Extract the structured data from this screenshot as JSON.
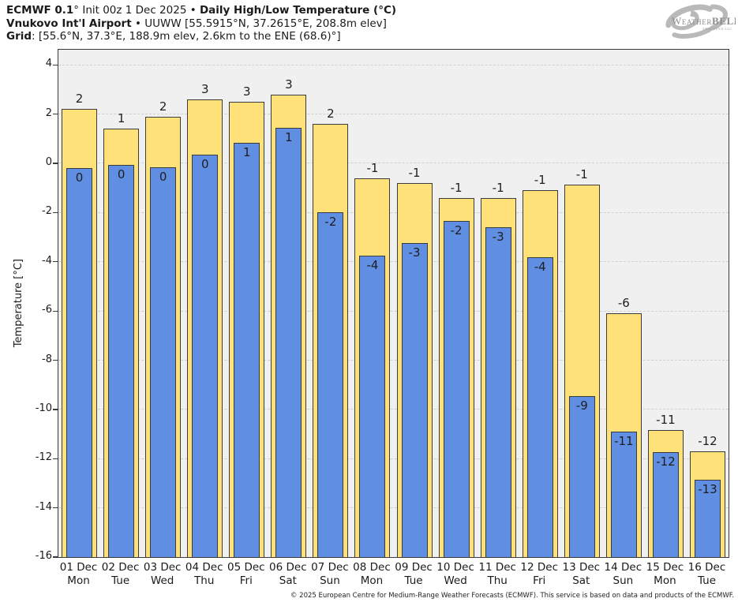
{
  "header": {
    "line1_bold1": "ECMWF 0.1",
    "line1_reg1": "° Init 00z 1 Dec 2025 • ",
    "line1_bold2": "Daily High/Low Temperature (°C)",
    "line2_bold": "Vnukovo Int'l Airport",
    "line2_reg": " • UUWW [55.5915°N, 37.2615°E, 208.8m elev]",
    "line3_bold": "Grid",
    "line3_reg": ": [55.6°N, 37.3°E, 188.9m elev, 2.6km to the ENE (68.6)°]"
  },
  "logo": {
    "brand_w": "W",
    "brand_eather": "EATHER",
    "brand_bell": "BELL",
    "brand_sub": "ANALYTICS LLC"
  },
  "chart_data": {
    "type": "bar",
    "title": "ECMWF 0.1° Init 00z 1 Dec 2025 • Daily High/Low Temperature (°C)",
    "subtitle": "Vnukovo Int'l Airport • UUWW [55.5915°N, 37.2615°E, 208.8m elev]",
    "ylabel": "Temperature [°C]",
    "ylim": [
      -16,
      4.62
    ],
    "yticks": [
      4,
      2,
      0,
      -2,
      -4,
      -6,
      -8,
      -10,
      -12,
      -14,
      -16
    ],
    "grid": "horizontal-dashed",
    "legend_position": "none",
    "categories": [
      {
        "date": "01 Dec",
        "day": "Mon"
      },
      {
        "date": "02 Dec",
        "day": "Tue"
      },
      {
        "date": "03 Dec",
        "day": "Wed"
      },
      {
        "date": "04 Dec",
        "day": "Thu"
      },
      {
        "date": "05 Dec",
        "day": "Fri"
      },
      {
        "date": "06 Dec",
        "day": "Sat"
      },
      {
        "date": "07 Dec",
        "day": "Sun"
      },
      {
        "date": "08 Dec",
        "day": "Mon"
      },
      {
        "date": "09 Dec",
        "day": "Tue"
      },
      {
        "date": "10 Dec",
        "day": "Wed"
      },
      {
        "date": "11 Dec",
        "day": "Thu"
      },
      {
        "date": "12 Dec",
        "day": "Fri"
      },
      {
        "date": "13 Dec",
        "day": "Sat"
      },
      {
        "date": "14 Dec",
        "day": "Sun"
      },
      {
        "date": "15 Dec",
        "day": "Mon"
      },
      {
        "date": "16 Dec",
        "day": "Tue"
      }
    ],
    "series": [
      {
        "name": "Daily High",
        "color": "#ffe17a",
        "values": [
          2.2,
          1.4,
          1.9,
          2.6,
          2.5,
          2.8,
          1.6,
          -0.6,
          -0.8,
          -1.4,
          -1.4,
          -1.1,
          -0.85,
          -6.1,
          -10.85,
          -11.7
        ],
        "labels": [
          "2",
          "1",
          "2",
          "3",
          "3",
          "3",
          "2",
          "-1",
          "-1",
          "-1",
          "-1",
          "-1",
          "-1",
          "-6",
          "-11",
          "-12"
        ]
      },
      {
        "name": "Daily Low",
        "color": "#5f8ee2",
        "values": [
          -0.2,
          -0.05,
          -0.15,
          0.35,
          0.85,
          1.45,
          -2.0,
          -3.75,
          -3.25,
          -2.35,
          -2.6,
          -3.8,
          -9.45,
          -10.9,
          -11.75,
          -12.85
        ],
        "labels": [
          "0",
          "0",
          "0",
          "0",
          "1",
          "1",
          "-2",
          "-4",
          "-3",
          "-2",
          "-3",
          "-4",
          "-9",
          "-11",
          "-12",
          "-13"
        ]
      }
    ]
  },
  "footer": "© 2025 European Centre for Medium-Range Weather Forecasts (ECMWF). This service is based on data and products of the ECMWF."
}
